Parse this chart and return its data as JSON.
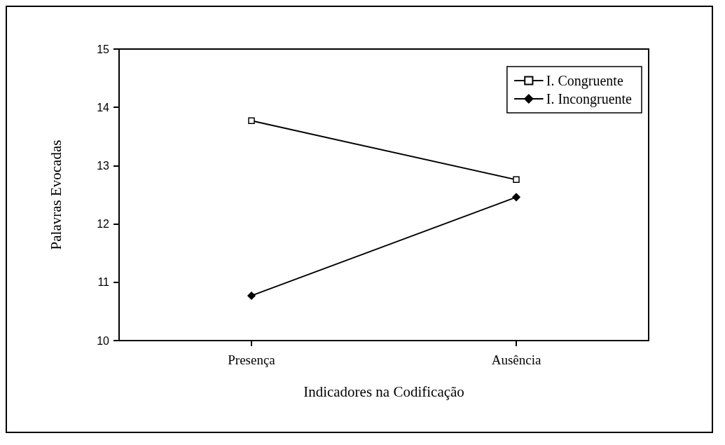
{
  "chart_data": {
    "type": "line",
    "xlabel": "Indicadores na Codificação",
    "ylabel": "Palavras Evocadas",
    "categories": [
      "Presença",
      "Ausência"
    ],
    "series": [
      {
        "name": "I. Congruente",
        "color": "#000000",
        "values": [
          13.77,
          12.76
        ],
        "marker": "square"
      },
      {
        "name": "I. Incongruente",
        "color": "#000000",
        "values": [
          10.77,
          12.46
        ],
        "marker": "diamond"
      }
    ],
    "ylim": [
      10,
      15
    ],
    "yticks": [
      10,
      11,
      12,
      13,
      14,
      15
    ],
    "grid": false,
    "legend": "top right",
    "line_style": "solid"
  }
}
